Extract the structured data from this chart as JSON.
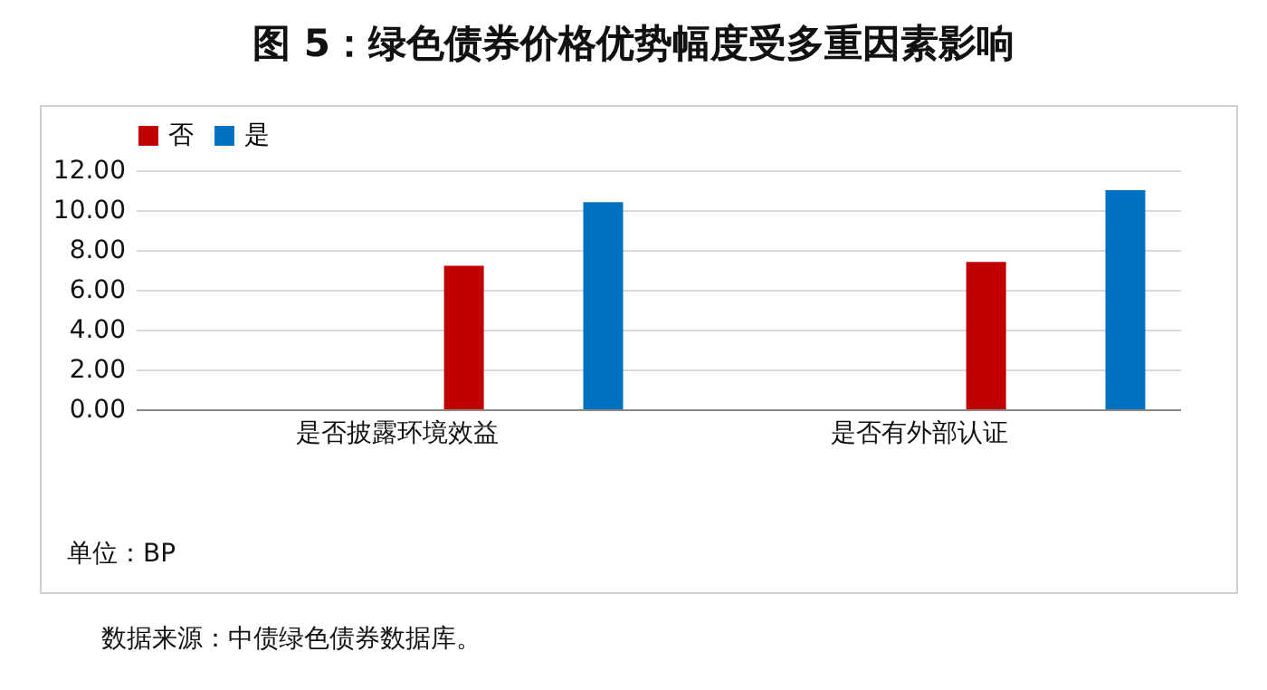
{
  "chart_data": {
    "type": "bar",
    "title": "图 5：绿色债券价格优势幅度受多重因素影响",
    "categories": [
      "是否披露环境效益",
      "是否有外部认证"
    ],
    "series": [
      {
        "name": "否",
        "color": "#c00000",
        "values": [
          7.2,
          7.4
        ]
      },
      {
        "name": "是",
        "color": "#0070c0",
        "values": [
          10.4,
          11.0
        ]
      }
    ],
    "ylim": [
      0,
      12
    ],
    "yticks": [
      {
        "value": 0,
        "label": "0.00"
      },
      {
        "value": 2,
        "label": "2.00"
      },
      {
        "value": 4,
        "label": "4.00"
      },
      {
        "value": 6,
        "label": "6.00"
      },
      {
        "value": 8,
        "label": "8.00"
      },
      {
        "value": 10,
        "label": "10.00"
      },
      {
        "value": 12,
        "label": "12.00"
      }
    ],
    "grid": "y",
    "legend": "top",
    "annotations": [
      "单位：BP",
      "数据来源：中债绿色债券数据库。"
    ]
  }
}
